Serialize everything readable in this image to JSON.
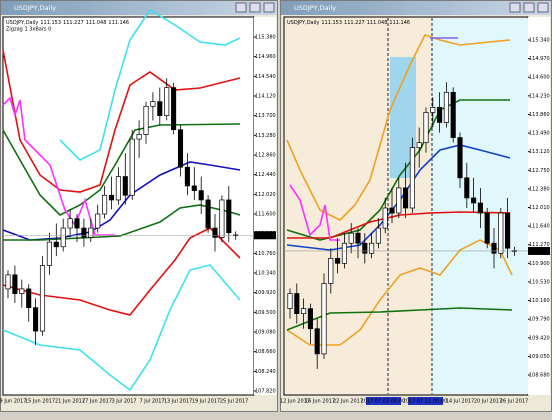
{
  "windows": [
    {
      "title": "USDJPY,Daily",
      "symbol": "USDJPY,Daily",
      "indicator": "Zigzag 1 3xBars 0",
      "price_labels": [
        "115.380",
        "114.960",
        "114.540",
        "114.120",
        "113.700",
        "113.280",
        "112.860",
        "112.440",
        "112.020",
        "111.600",
        "111.180",
        "110.760",
        "110.340",
        "109.920",
        "109.500",
        "109.080",
        "108.660",
        "108.240",
        "107.820"
      ],
      "date_labels": [
        "9 Jun 2017",
        "15 Jun 2017",
        "21 Jun 2017",
        "27 Jun 2017",
        "3 Jul 2017",
        "7 Jul 2017",
        "13 Jul 2017",
        "19 Jul 2017",
        "25 Jul 2017"
      ]
    },
    {
      "title": "USDJPY,Daily",
      "symbol": "USDJPY,Daily",
      "price_labels": [
        "115.340",
        "114.970",
        "114.600",
        "114.230",
        "113.860",
        "113.490",
        "113.120",
        "112.750",
        "112.380",
        "112.010",
        "111.640",
        "111.270",
        "110.900",
        "110.530",
        "110.160",
        "109.790",
        "109.420",
        "109.050",
        "108.680"
      ],
      "date_labels": [
        "12 Jun 2017",
        "16 Jun 2017",
        "22 Jun 2017",
        "2017.07.03 00:00",
        "2017.07.11 00:00",
        "14 Jul 2017",
        "20 Jul 2017",
        "26 Jul 2017"
      ]
    }
  ],
  "ohlc": {
    "open": [
      110.0,
      110.3,
      109.9,
      110.0,
      109.6,
      109.1,
      110.5,
      111.0,
      110.9,
      111.3,
      111.5,
      111.3,
      111.1,
      111.3,
      111.6,
      112.0,
      111.9,
      112.4,
      112.0,
      113.2,
      113.3,
      113.9,
      114.0,
      113.7,
      114.3,
      113.4,
      112.6,
      112.2,
      112.1,
      111.9,
      111.3,
      111.1,
      111.9,
      111.153
    ],
    "high": [
      110.4,
      110.5,
      110.2,
      110.1,
      109.8,
      110.7,
      111.2,
      111.4,
      111.5,
      111.7,
      111.6,
      111.5,
      111.5,
      111.8,
      112.2,
      112.4,
      112.6,
      112.9,
      113.4,
      113.6,
      114.0,
      114.2,
      114.3,
      114.5,
      114.4,
      113.5,
      112.9,
      112.6,
      112.4,
      112.0,
      111.6,
      112.0,
      112.2,
      111.227
    ],
    "low": [
      109.8,
      109.7,
      109.6,
      109.3,
      108.8,
      109.0,
      110.3,
      110.7,
      110.8,
      111.1,
      111.0,
      110.9,
      111.0,
      111.2,
      111.5,
      111.7,
      111.8,
      111.8,
      111.9,
      112.8,
      113.1,
      113.6,
      113.5,
      113.6,
      113.3,
      112.4,
      112.0,
      111.9,
      111.6,
      111.2,
      110.8,
      111.0,
      111.0,
      111.048
    ],
    "close": [
      110.3,
      109.9,
      110.0,
      109.6,
      109.1,
      110.5,
      111.0,
      110.9,
      111.3,
      111.5,
      111.3,
      111.1,
      111.3,
      111.6,
      112.0,
      111.9,
      112.4,
      112.0,
      113.2,
      113.3,
      113.9,
      114.0,
      113.7,
      114.3,
      113.4,
      112.6,
      112.2,
      112.1,
      111.9,
      111.3,
      111.1,
      111.9,
      111.2,
      111.146
    ]
  }
}
